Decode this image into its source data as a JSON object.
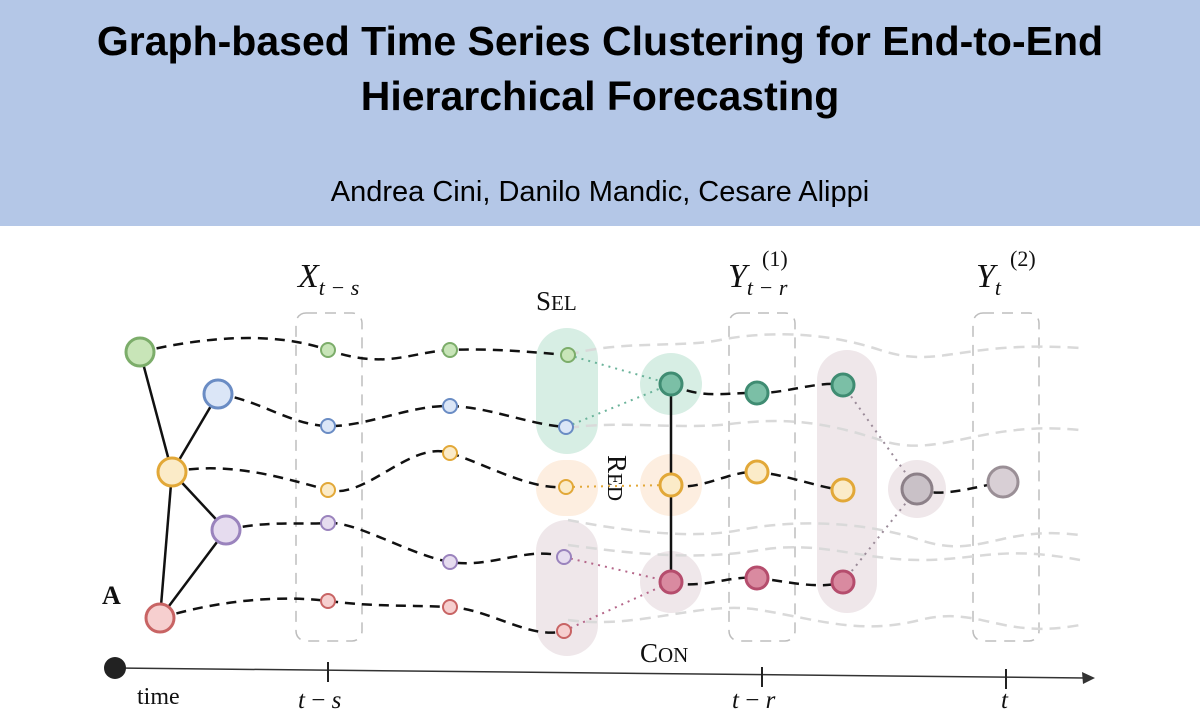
{
  "header": {
    "title_line1": "Graph-based Time Series Clustering for End-to-End",
    "title_line2": "Hierarchical Forecasting",
    "authors": "Andrea Cini, Danilo Mandic, Cesare Alippi"
  },
  "labels": {
    "input_window": {
      "main": "X",
      "sub": "t − s"
    },
    "pred1": {
      "main": "Y",
      "sub": "t − r",
      "sup": "(1)"
    },
    "pred2": {
      "main": "Y",
      "sub": "t",
      "sup": "(2)"
    },
    "sel_cap": "S",
    "sel_rest": "EL",
    "red_cap": "R",
    "red_rest": "ED",
    "con_cap": "C",
    "con_rest": "ON",
    "adjacency": "A"
  },
  "time_axis": {
    "label": "time",
    "ticks": [
      {
        "a": "t",
        "op": " − ",
        "b": "s"
      },
      {
        "a": "t",
        "op": " − ",
        "b": "r"
      },
      {
        "a": "t",
        "op": "",
        "b": ""
      }
    ]
  },
  "colors": {
    "banner": "#b4c7e7",
    "green": "#9fcf8c",
    "green_stroke": "#7cad6a",
    "blue": "#c5d8f2",
    "blue_stroke": "#6a8cc4",
    "yellow": "#f8e3b4",
    "yellow_stroke": "#e2a838",
    "purple": "#d8cce6",
    "purple_stroke": "#9a83bd",
    "red": "#f2bcbc",
    "red_stroke": "#c86464",
    "teal": "#7bbfa6",
    "teal_stroke": "#3f8c72",
    "rose": "#d98aa0",
    "rose_stroke": "#b54d6d",
    "gray": "#b9b0b8",
    "gray_stroke": "#8c8088"
  }
}
